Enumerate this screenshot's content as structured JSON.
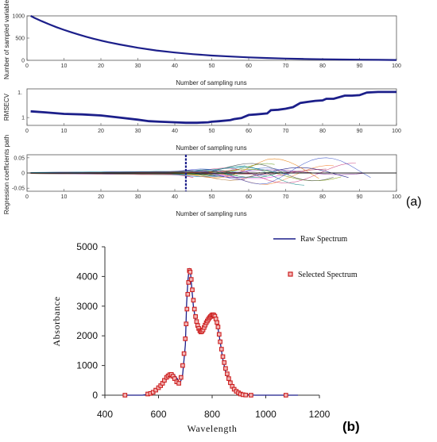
{
  "chart_data": [
    {
      "type": "line",
      "panel": "(a)",
      "xlabel": "Number of sampling runs",
      "ylabel": "Number of sampled variables",
      "xlim": [
        0,
        100
      ],
      "ylim": [
        0,
        1000
      ],
      "xticks": [
        0,
        10,
        20,
        30,
        40,
        50,
        60,
        70,
        80,
        90,
        100
      ],
      "yticks": [
        0,
        500,
        1000
      ],
      "line_color": "#1c1f8a",
      "x": [
        1,
        2,
        4,
        6,
        8,
        10,
        12,
        14,
        16,
        18,
        20,
        22,
        25,
        30,
        35,
        40,
        45,
        50,
        55,
        60,
        65,
        70,
        75,
        80,
        85,
        90,
        95,
        100
      ],
      "y": [
        1000,
        955,
        880,
        810,
        745,
        685,
        630,
        578,
        530,
        485,
        445,
        408,
        358,
        282,
        222,
        175,
        137,
        108,
        85,
        66,
        52,
        40,
        31,
        24,
        18,
        14,
        11,
        8
      ]
    },
    {
      "type": "line",
      "panel": "(a)",
      "xlabel": "Number of sampling runs",
      "ylabel": "RMSECV",
      "xlim": [
        0,
        100
      ],
      "ylim": [
        0.85,
        1.55
      ],
      "xticks": [
        0,
        10,
        20,
        30,
        40,
        50,
        60,
        70,
        80,
        90,
        100
      ],
      "yticks": [
        1
      ],
      "ytick_labels": [
        "1"
      ],
      "extra_ytick_label": "1.",
      "line_color": "#1c1f8a",
      "x": [
        1,
        5,
        10,
        15,
        20,
        25,
        30,
        33,
        36,
        40,
        43,
        46,
        49,
        50,
        52,
        55,
        56,
        58,
        60,
        62,
        65,
        66,
        68,
        70,
        72,
        73,
        74,
        76,
        78,
        80,
        81,
        83,
        86,
        88,
        90,
        92,
        95,
        100
      ],
      "y": [
        1.12,
        1.1,
        1.07,
        1.06,
        1.04,
        1.0,
        0.96,
        0.93,
        0.92,
        0.91,
        0.9,
        0.9,
        0.91,
        0.92,
        0.93,
        0.95,
        0.97,
        0.99,
        1.05,
        1.06,
        1.08,
        1.14,
        1.15,
        1.17,
        1.2,
        1.24,
        1.28,
        1.3,
        1.32,
        1.33,
        1.36,
        1.36,
        1.42,
        1.42,
        1.43,
        1.48,
        1.49,
        1.49
      ]
    },
    {
      "type": "line",
      "panel": "(a)",
      "xlabel": "Number of sampling runs",
      "ylabel": "Regression coefficients path",
      "xlim": [
        0,
        100
      ],
      "ylim": [
        -0.06,
        0.06
      ],
      "xticks": [
        0,
        10,
        20,
        30,
        40,
        50,
        60,
        70,
        80,
        90,
        100
      ],
      "yticks": [
        -0.05,
        0,
        0.05
      ],
      "ytick_labels": [
        "-0.05",
        "0",
        "0.05"
      ],
      "marker_x": 43,
      "marker_color": "#1c1f8a",
      "series_count": 30,
      "series_note": "multi-colored coefficient paths fanning out after ~40 runs"
    },
    {
      "type": "line",
      "panel": "(b)",
      "xlabel": "Wavelength",
      "ylabel": "Absorbance",
      "xlim": [
        400,
        1200
      ],
      "ylim": [
        0,
        5000
      ],
      "xticks": [
        400,
        600,
        800,
        1000,
        1200
      ],
      "yticks": [
        0,
        1000,
        2000,
        3000,
        4000,
        5000
      ],
      "legend": [
        "Raw Spectrum",
        "Selected Spectrum"
      ],
      "legend_position": "top-right",
      "series": [
        {
          "name": "Raw Spectrum",
          "style": "line",
          "color": "#1c1f8a",
          "x": [
            400,
            540,
            560,
            580,
            600,
            620,
            640,
            655,
            670,
            680,
            690,
            700,
            705,
            710,
            715,
            720,
            725,
            730,
            740,
            750,
            760,
            770,
            780,
            790,
            800,
            810,
            820,
            830,
            840,
            850,
            860,
            880,
            900,
            920,
            940,
            960,
            1000,
            1060,
            1120
          ],
          "values": [
            0,
            0,
            30,
            100,
            250,
            420,
            640,
            720,
            560,
            380,
            700,
            1700,
            3100,
            3900,
            4280,
            4050,
            3500,
            3000,
            2400,
            2150,
            2200,
            2400,
            2550,
            2650,
            2720,
            2620,
            2350,
            1800,
            1200,
            800,
            500,
            220,
            80,
            30,
            10,
            0,
            0,
            0,
            0
          ]
        },
        {
          "name": "Selected Spectrum",
          "style": "markers",
          "color": "#cc1f1f",
          "x": [
            475,
            560,
            570,
            580,
            590,
            600,
            608,
            615,
            622,
            630,
            636,
            642,
            648,
            654,
            660,
            668,
            676,
            684,
            690,
            695,
            700,
            703,
            706,
            709,
            712,
            715,
            718,
            722,
            726,
            730,
            734,
            738,
            742,
            746,
            750,
            754,
            758,
            762,
            766,
            770,
            774,
            778,
            782,
            786,
            790,
            794,
            798,
            802,
            806,
            810,
            814,
            818,
            822,
            826,
            830,
            835,
            840,
            845,
            850,
            856,
            862,
            868,
            875,
            882,
            890,
            898,
            906,
            915,
            925,
            945,
            1075
          ],
          "values": [
            0,
            40,
            60,
            100,
            170,
            250,
            320,
            400,
            500,
            600,
            650,
            690,
            700,
            640,
            560,
            450,
            400,
            600,
            1000,
            1400,
            1900,
            2400,
            2900,
            3400,
            3800,
            4200,
            4150,
            3900,
            3550,
            3200,
            2900,
            2650,
            2480,
            2350,
            2250,
            2170,
            2130,
            2150,
            2200,
            2280,
            2360,
            2440,
            2500,
            2560,
            2610,
            2650,
            2690,
            2710,
            2700,
            2660,
            2570,
            2450,
            2300,
            2050,
            1800,
            1550,
            1300,
            1100,
            900,
            720,
            560,
            420,
            300,
            200,
            130,
            80,
            40,
            15,
            5,
            0,
            0
          ]
        }
      ]
    }
  ]
}
